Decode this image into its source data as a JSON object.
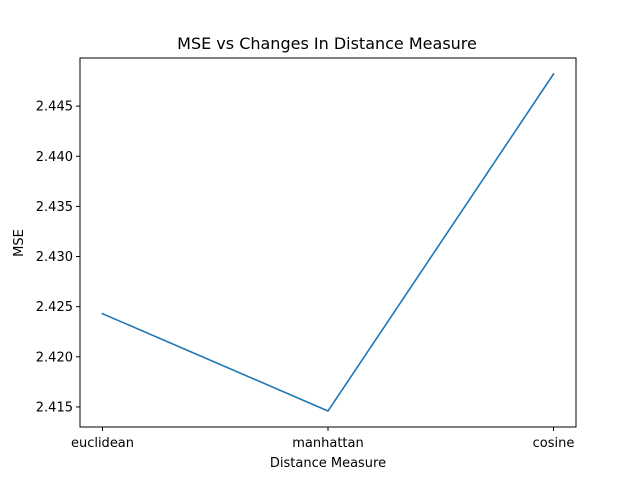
{
  "chart_data": {
    "type": "line",
    "title": "MSE vs Changes In Distance Measure",
    "xlabel": "Distance Measure",
    "ylabel": "MSE",
    "categories": [
      "euclidean",
      "manhattan",
      "cosine"
    ],
    "series": [
      {
        "values": [
          2.4243,
          2.4146,
          2.4482
        ],
        "color": "#1f77b4"
      }
    ],
    "ylim": [
      2.413,
      2.4498
    ],
    "yticks": [
      2.415,
      2.42,
      2.425,
      2.43,
      2.435,
      2.44,
      2.445
    ],
    "ytick_labels": [
      "2.415",
      "2.420",
      "2.425",
      "2.430",
      "2.435",
      "2.440",
      "2.445"
    ],
    "grid": false,
    "legend": "none"
  }
}
